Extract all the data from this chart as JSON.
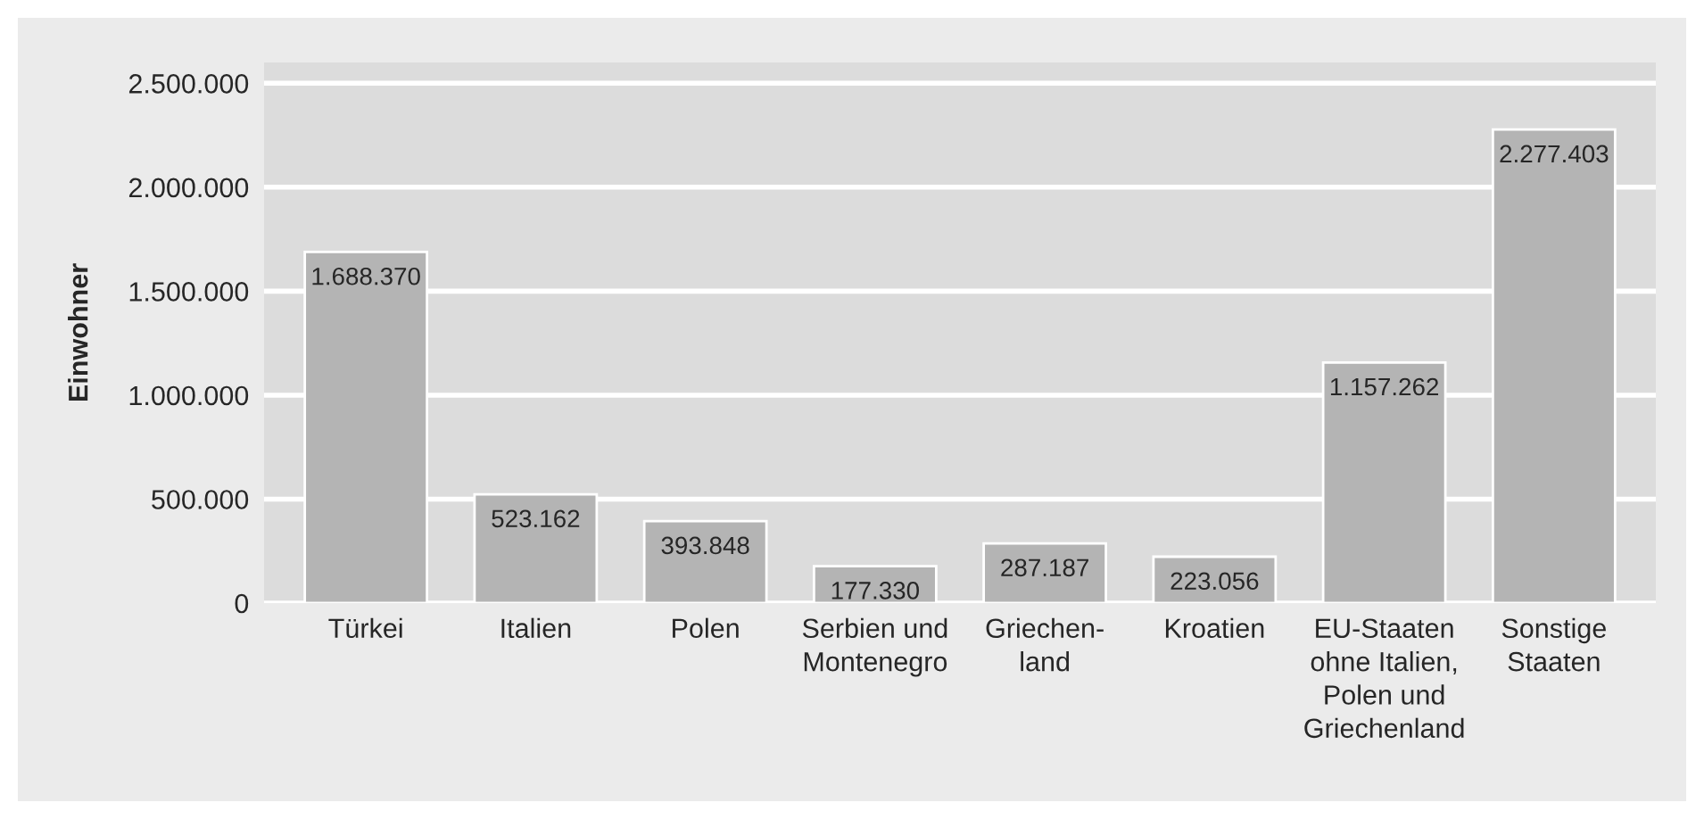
{
  "chart_data": {
    "type": "bar",
    "ylabel": "Einwohner",
    "categories": [
      "Türkei",
      "Italien",
      "Polen",
      "Serbien und\nMontenegro",
      "Griechen-\nland",
      "Kroatien",
      "EU-Staaten\nohne Italien,\nPolen und\nGriechenland",
      "Sonstige\nStaaten"
    ],
    "values": [
      1688370,
      523162,
      393848,
      177330,
      287187,
      223056,
      1157262,
      2277403
    ],
    "value_labels": [
      "1.688.370",
      "523.162",
      "393.848",
      "177.330",
      "287.187",
      "223.056",
      "1.157.262",
      "2.277.403"
    ],
    "color": "#b4b4b4",
    "ylim": [
      0,
      2600000
    ],
    "yticks": [
      {
        "value": 0,
        "label": "0"
      },
      {
        "value": 500000,
        "label": "500.000"
      },
      {
        "value": 1000000,
        "label": "1.000.000"
      },
      {
        "value": 1500000,
        "label": "1.500.000"
      },
      {
        "value": 2000000,
        "label": "2.000.000"
      },
      {
        "value": 2500000,
        "label": "2.500.000"
      }
    ],
    "grid": "y",
    "legend": false
  }
}
